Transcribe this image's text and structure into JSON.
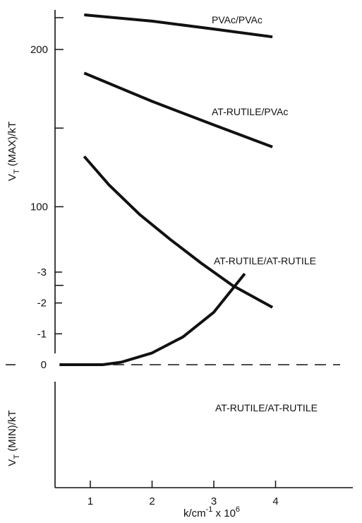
{
  "chart_data": {
    "type": "line",
    "x_axis": {
      "label_main": "k/cm",
      "label_exp": "-1",
      "label_tail": " x 10",
      "label_tail_exp": "6",
      "ticks": [
        1,
        2,
        3,
        4
      ],
      "tick_labels": [
        "1",
        "2",
        "3",
        "4"
      ],
      "range": [
        0.5,
        5.1
      ]
    },
    "upper_panel": {
      "ylabel_main": "V",
      "ylabel_sub": "T",
      "ylabel_tail": " (MAX)/kT",
      "ylim": [
        0,
        228
      ],
      "ticks": [
        0,
        50,
        100,
        150,
        200
      ],
      "tick_labels": [
        "",
        "",
        "100",
        "",
        "200"
      ],
      "series": [
        {
          "name": "PVAc/PVAc",
          "x": [
            0.9,
            2.0,
            3.0,
            3.95
          ],
          "y": [
            222,
            218,
            213,
            208
          ]
        },
        {
          "name": "AT-RUTILE/PVAc",
          "x": [
            0.9,
            2.0,
            3.0,
            3.95
          ],
          "y": [
            185,
            167,
            152,
            138
          ]
        },
        {
          "name": "AT-RUTILE/AT-RUTILE",
          "x": [
            0.9,
            1.3,
            1.8,
            2.3,
            2.8,
            3.3,
            3.95
          ],
          "y": [
            132,
            114,
            95,
            79,
            64,
            50,
            36
          ]
        }
      ]
    },
    "lower_panel": {
      "ylabel_main": "V",
      "ylabel_sub": "T",
      "ylabel_tail": " (MIN)/kT",
      "ylim": [
        -3.7,
        0.4
      ],
      "ticks": [
        0,
        -1,
        -2,
        -3
      ],
      "tick_labels": [
        "0",
        "-1",
        "-2",
        "-3"
      ],
      "zero_line_dashed": true,
      "series": [
        {
          "name": "AT-RUTILE/AT-RUTILE",
          "x": [
            0.5,
            0.9,
            1.2,
            1.5,
            2.0,
            2.5,
            3.0,
            3.5
          ],
          "y": [
            0,
            0,
            0,
            -0.08,
            -0.38,
            -0.9,
            -1.7,
            -2.95
          ]
        }
      ]
    }
  }
}
